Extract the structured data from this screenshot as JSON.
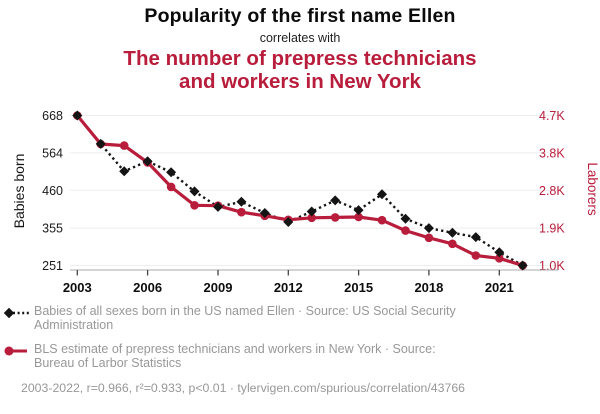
{
  "header": {
    "title": "Popularity of the first name Ellen",
    "connector": "correlates with",
    "subtitle_lines": [
      "The number of prepress technicians",
      "and workers in New York"
    ]
  },
  "colors": {
    "accent_red": "#b91d3c",
    "series_black": "#141414",
    "grid": "#ededed",
    "axis_line": "#aaaaaa",
    "tick_mark": "#444444",
    "legend_text": "#989898"
  },
  "chart_data": {
    "type": "line",
    "title": "Popularity of the first name Ellen correlates with The number of prepress technicians and workers in New York",
    "x": [
      2003,
      2004,
      2005,
      2006,
      2007,
      2008,
      2009,
      2010,
      2011,
      2012,
      2013,
      2014,
      2015,
      2016,
      2017,
      2018,
      2019,
      2020,
      2021,
      2022
    ],
    "x_tick_labels": [
      "2003",
      "2006",
      "2009",
      "2012",
      "2015",
      "2018",
      "2021"
    ],
    "series": [
      {
        "name": "Babies of all sexes born in the US named Ellen",
        "axis": "left",
        "line_style": "dotted",
        "marker": "diamond",
        "color": "#141414",
        "values": [
          668,
          589,
          513,
          541,
          510,
          457,
          414,
          428,
          397,
          372,
          401,
          432,
          405,
          449,
          381,
          355,
          342,
          330,
          288,
          251
        ]
      },
      {
        "name": "BLS estimate of prepress technicians and workers in New York",
        "axis": "right",
        "line_style": "solid",
        "marker": "circle",
        "color": "#b91d3c",
        "values": [
          4700,
          3990,
          3950,
          3530,
          2920,
          2460,
          2450,
          2290,
          2200,
          2100,
          2150,
          2160,
          2170,
          2090,
          1830,
          1650,
          1500,
          1210,
          1140,
          960
        ]
      }
    ],
    "left_axis": {
      "label": "Babies born",
      "min": 251,
      "max": 668,
      "ticks": [
        668,
        564,
        460,
        355,
        251
      ]
    },
    "right_axis": {
      "label": "Laborers",
      "min": 960,
      "max": 4700,
      "tick_labels": [
        "4.7K",
        "3.8K",
        "2.8K",
        "1.9K",
        "1.0K"
      ]
    },
    "grid": "horizontal",
    "legend_position": "bottom"
  },
  "legend": {
    "items": [
      {
        "label": "Babies of all sexes born in the US named Ellen · Source: US Social Security Administration"
      },
      {
        "label": "BLS estimate of prepress technicians and workers in New York · Source: Bureau of Larbor Statistics"
      }
    ]
  },
  "footer": {
    "stats": "2003-2022, r=0.966, r²=0.933, p<0.01 · tylervigen.com/spurious/correlation/43766"
  }
}
